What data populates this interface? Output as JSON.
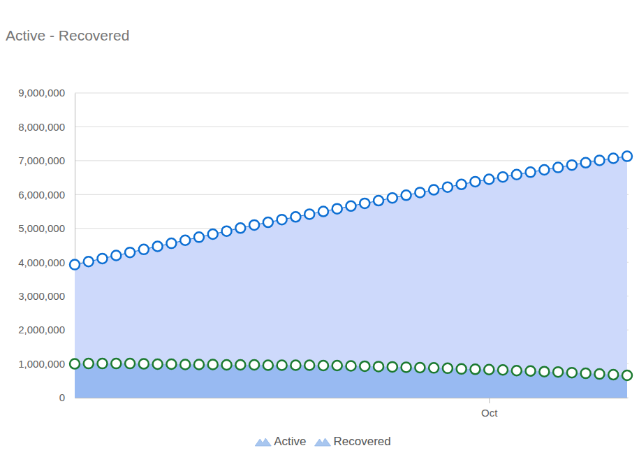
{
  "chart_data": {
    "type": "area",
    "title": "Active - Recovered",
    "categories": [
      null,
      null,
      null,
      null,
      null,
      null,
      null,
      null,
      null,
      null,
      null,
      null,
      null,
      null,
      null,
      null,
      null,
      null,
      null,
      null,
      null,
      null,
      null,
      null,
      null,
      null,
      null,
      null,
      null,
      null,
      "Oct",
      null,
      null,
      null,
      null,
      null,
      null,
      null,
      null,
      null,
      null
    ],
    "series": [
      {
        "name": "Active",
        "color": "#0d6fd3",
        "marker": "circle",
        "values": [
          3930000,
          4020000,
          4110000,
          4200000,
          4290000,
          4380000,
          4470000,
          4560000,
          4650000,
          4740000,
          4830000,
          4920000,
          5010000,
          5100000,
          5180000,
          5260000,
          5340000,
          5420000,
          5500000,
          5580000,
          5660000,
          5740000,
          5820000,
          5900000,
          5980000,
          6060000,
          6140000,
          6220000,
          6300000,
          6380000,
          6450000,
          6520000,
          6590000,
          6660000,
          6730000,
          6800000,
          6870000,
          6940000,
          7010000,
          7070000,
          7130000
        ]
      },
      {
        "name": "Recovered",
        "color": "#1c7a30",
        "marker": "circle",
        "values": [
          1000000,
          1010000,
          1010000,
          1010000,
          1010000,
          1000000,
          990000,
          990000,
          980000,
          980000,
          980000,
          970000,
          970000,
          970000,
          960000,
          960000,
          960000,
          960000,
          950000,
          950000,
          940000,
          930000,
          920000,
          910000,
          900000,
          890000,
          880000,
          870000,
          850000,
          840000,
          830000,
          820000,
          800000,
          790000,
          770000,
          760000,
          740000,
          720000,
          700000,
          680000,
          660000
        ]
      }
    ],
    "ylim": [
      0,
      9000000
    ],
    "yticks": [
      0,
      {
        "value": 1000000,
        "label": "1,000,000"
      },
      {
        "value": 2000000,
        "label": "2,000,000"
      },
      {
        "value": 3000000,
        "label": "3,000,000"
      },
      {
        "value": 4000000,
        "label": "4,000,000"
      },
      {
        "value": 5000000,
        "label": "5,000,000"
      },
      {
        "value": 6000000,
        "label": "6,000,000"
      },
      {
        "value": 7000000,
        "label": "7,000,000"
      },
      {
        "value": 8000000,
        "label": "8,000,000"
      },
      {
        "value": 9000000,
        "label": "9,000,000"
      }
    ],
    "grid": true,
    "legend": "bottom"
  }
}
